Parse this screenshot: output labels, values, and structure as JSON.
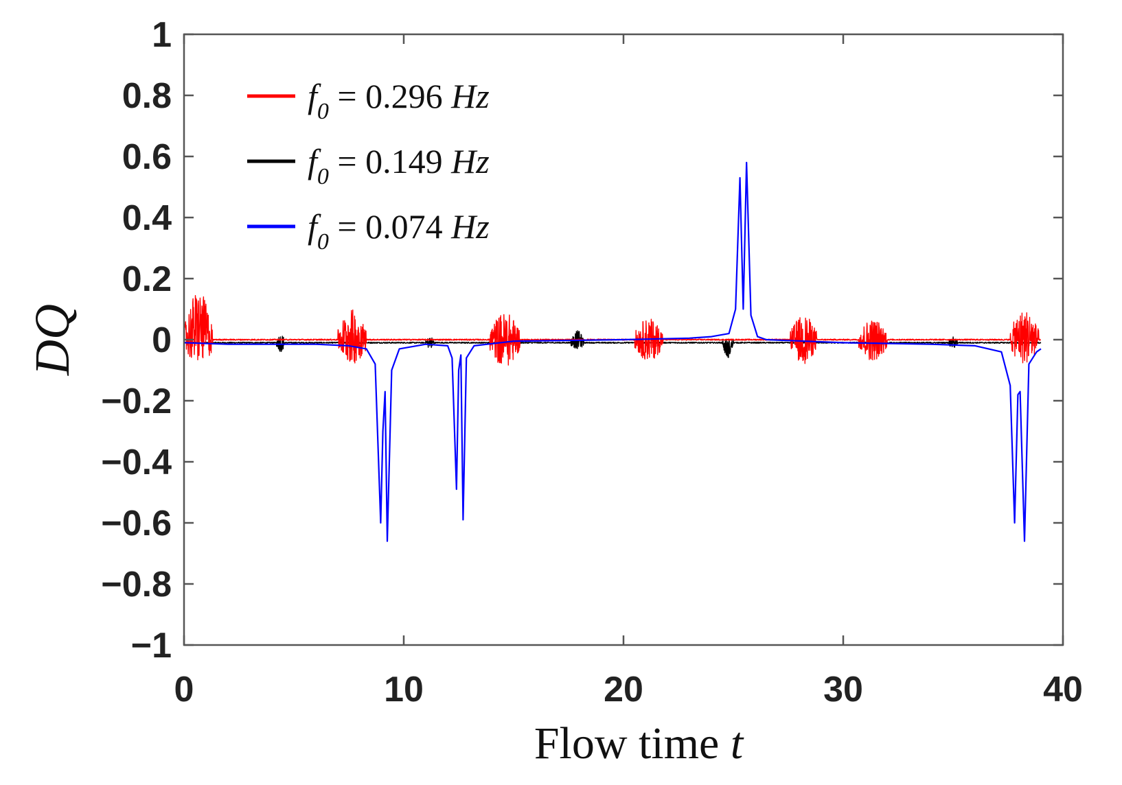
{
  "chart_data": {
    "type": "line",
    "title": "",
    "xlabel": "Flow time",
    "xlabel_var": "t",
    "ylabel": "DQ",
    "xlim": [
      0,
      40
    ],
    "ylim": [
      -1,
      1
    ],
    "xticks": [
      {
        "v": 0,
        "label": "0"
      },
      {
        "v": 10,
        "label": "10"
      },
      {
        "v": 20,
        "label": "20"
      },
      {
        "v": 30,
        "label": "30"
      },
      {
        "v": 40,
        "label": "40"
      }
    ],
    "yticks": [
      {
        "v": 1,
        "label": "1"
      },
      {
        "v": 0.8,
        "label": "0.8"
      },
      {
        "v": 0.6,
        "label": "0.6"
      },
      {
        "v": 0.4,
        "label": "0.4"
      },
      {
        "v": 0.2,
        "label": "0.2"
      },
      {
        "v": 0,
        "label": "0"
      },
      {
        "v": -0.2,
        "label": "−0.2"
      },
      {
        "v": -0.4,
        "label": "−0.4"
      },
      {
        "v": -0.6,
        "label": "−0.6"
      },
      {
        "v": -0.8,
        "label": "−0.8"
      },
      {
        "v": -1,
        "label": "−1"
      }
    ],
    "grid": false,
    "legend_position": "top-left",
    "series": [
      {
        "name": "f0 = 0.296 Hz",
        "legend_f": "f",
        "legend_sub": "0",
        "legend_rest": " = 0.296 ",
        "legend_unit": "Hz",
        "color": "#ff0000",
        "baseline": 0.0,
        "bursts": [
          {
            "t0": 0.0,
            "t1": 1.3,
            "amp": 0.12,
            "offset": 0.04
          },
          {
            "t0": 7.0,
            "t1": 8.3,
            "amp": 0.09,
            "offset": 0.01
          },
          {
            "t0": 13.9,
            "t1": 15.3,
            "amp": 0.09,
            "offset": 0.0
          },
          {
            "t0": 20.5,
            "t1": 21.8,
            "amp": 0.07,
            "offset": 0.0
          },
          {
            "t0": 27.6,
            "t1": 28.8,
            "amp": 0.08,
            "offset": 0.0
          },
          {
            "t0": 30.7,
            "t1": 32.0,
            "amp": 0.07,
            "offset": 0.0
          },
          {
            "t0": 37.6,
            "t1": 38.9,
            "amp": 0.09,
            "offset": 0.01
          }
        ]
      },
      {
        "name": "f0 = 0.149 Hz",
        "legend_f": "f",
        "legend_sub": "0",
        "legend_rest": " = 0.149 ",
        "legend_unit": "Hz",
        "color": "#000000",
        "baseline": -0.01,
        "bursts": [
          {
            "t0": 4.2,
            "t1": 4.6,
            "amp": 0.03,
            "offset": 0.0
          },
          {
            "t0": 11.0,
            "t1": 11.4,
            "amp": 0.02,
            "offset": 0.0
          },
          {
            "t0": 17.6,
            "t1": 18.2,
            "amp": 0.03,
            "offset": 0.01
          },
          {
            "t0": 24.5,
            "t1": 25.0,
            "amp": 0.03,
            "offset": -0.02
          },
          {
            "t0": 34.8,
            "t1": 35.2,
            "amp": 0.02,
            "offset": 0.0
          }
        ]
      },
      {
        "name": "f0 = 0.074 Hz",
        "legend_f": "f",
        "legend_sub": "0",
        "legend_rest": " = 0.074 ",
        "legend_unit": "Hz",
        "color": "#0000ff",
        "points": [
          [
            0.0,
            -0.01
          ],
          [
            2.0,
            -0.015
          ],
          [
            6.0,
            -0.015
          ],
          [
            7.5,
            -0.02
          ],
          [
            8.3,
            -0.03
          ],
          [
            8.7,
            -0.08
          ],
          [
            8.95,
            -0.6
          ],
          [
            9.05,
            -0.3
          ],
          [
            9.15,
            -0.17
          ],
          [
            9.25,
            -0.66
          ],
          [
            9.45,
            -0.1
          ],
          [
            9.8,
            -0.03
          ],
          [
            11.0,
            -0.015
          ],
          [
            12.0,
            -0.02
          ],
          [
            12.2,
            -0.06
          ],
          [
            12.4,
            -0.49
          ],
          [
            12.5,
            -0.1
          ],
          [
            12.6,
            -0.05
          ],
          [
            12.7,
            -0.59
          ],
          [
            12.85,
            -0.06
          ],
          [
            13.2,
            -0.02
          ],
          [
            15.0,
            -0.005
          ],
          [
            20.0,
            0.0
          ],
          [
            23.0,
            0.005
          ],
          [
            24.0,
            0.01
          ],
          [
            24.8,
            0.02
          ],
          [
            25.1,
            0.1
          ],
          [
            25.3,
            0.53
          ],
          [
            25.45,
            0.1
          ],
          [
            25.6,
            0.58
          ],
          [
            25.8,
            0.08
          ],
          [
            26.1,
            0.01
          ],
          [
            26.5,
            0.0
          ],
          [
            30.0,
            -0.01
          ],
          [
            34.0,
            -0.015
          ],
          [
            36.0,
            -0.02
          ],
          [
            37.2,
            -0.04
          ],
          [
            37.6,
            -0.15
          ],
          [
            37.8,
            -0.6
          ],
          [
            37.95,
            -0.18
          ],
          [
            38.05,
            -0.17
          ],
          [
            38.25,
            -0.66
          ],
          [
            38.45,
            -0.08
          ],
          [
            38.8,
            -0.04
          ],
          [
            39.0,
            -0.03
          ]
        ]
      }
    ]
  }
}
